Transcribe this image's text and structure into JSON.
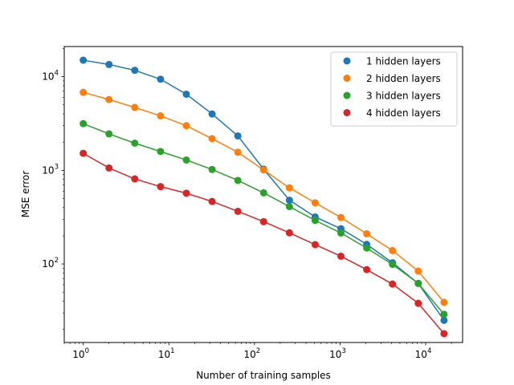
{
  "chart_data": {
    "type": "line",
    "title": "",
    "xlabel": "Number of training samples",
    "ylabel": "MSE error",
    "xscale": "log",
    "yscale": "log",
    "xlim": [
      0.6,
      27000
    ],
    "ylim": [
      14.5,
      21000
    ],
    "grid": false,
    "legend_position": "top-right",
    "x_ticks": [
      {
        "value": 1,
        "base": "10",
        "exp": "0"
      },
      {
        "value": 10,
        "base": "10",
        "exp": "1"
      },
      {
        "value": 100,
        "base": "10",
        "exp": "2"
      },
      {
        "value": 1000,
        "base": "10",
        "exp": "3"
      },
      {
        "value": 10000,
        "base": "10",
        "exp": "4"
      }
    ],
    "y_ticks": [
      {
        "value": 100,
        "base": "10",
        "exp": "2"
      },
      {
        "value": 1000,
        "base": "10",
        "exp": "3"
      },
      {
        "value": 10000,
        "base": "10",
        "exp": "4"
      }
    ],
    "x": [
      1,
      2,
      4,
      8,
      16,
      32,
      64,
      128,
      256,
      512,
      1024,
      2048,
      4096,
      8192,
      16384
    ],
    "series": [
      {
        "name": "1 hidden layers",
        "color": "#1f77b4",
        "values": [
          15000,
          13500,
          11700,
          9400,
          6500,
          4000,
          2330,
          1030,
          480,
          318,
          238,
          162,
          103,
          62,
          25
        ]
      },
      {
        "name": "2 hidden layers",
        "color": "#ff7f0e",
        "values": [
          6800,
          5700,
          4700,
          3820,
          3000,
          2180,
          1560,
          1010,
          650,
          450,
          314,
          210,
          139,
          84,
          39
        ]
      },
      {
        "name": "3 hidden layers",
        "color": "#2ca02c",
        "values": [
          3150,
          2450,
          1950,
          1590,
          1290,
          1020,
          780,
          575,
          410,
          292,
          214,
          148,
          99,
          62,
          29
        ]
      },
      {
        "name": "4 hidden layers",
        "color": "#d62728",
        "values": [
          1520,
          1060,
          810,
          670,
          570,
          465,
          365,
          283,
          215,
          161,
          121,
          87,
          61,
          38,
          18
        ]
      }
    ]
  }
}
